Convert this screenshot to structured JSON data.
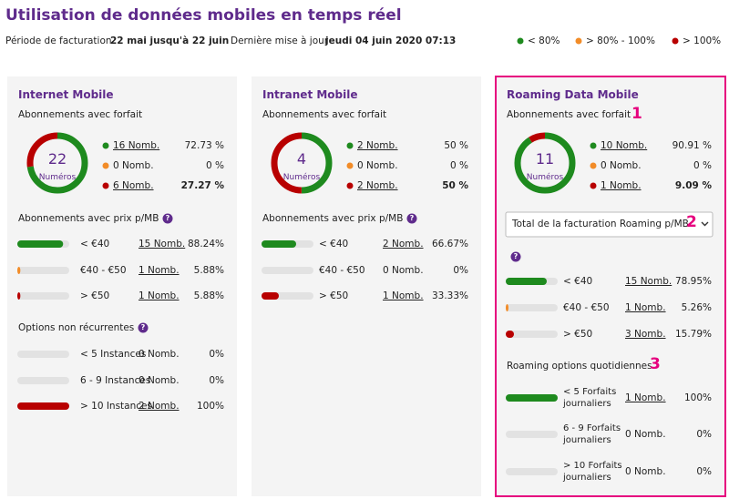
{
  "header": {
    "title": "Utilisation de données mobiles en temps réel",
    "period_label": "Période de facturation",
    "period": "22 mai jusqu'à 22 juin",
    "update_label": "Dernière mise à jour",
    "update": "jeudi 04 juin 2020 07:13"
  },
  "legend": [
    {
      "label": "< 80%",
      "color": "#1e8a1e"
    },
    {
      "label": "> 80% - 100%",
      "color": "#f28c28"
    },
    {
      "label": "> 100%",
      "color": "#b80000"
    }
  ],
  "panels": [
    {
      "title": "Internet Mobile",
      "subscriptions": {
        "label": "Abonnements avec forfait",
        "total": 22,
        "total_label": "Numéros",
        "rows": [
          {
            "count": "16 Nomb.",
            "pct": {
              "value": 72.73,
              "label": "72.73 %"
            },
            "color": "#1e8a1e",
            "link": true
          },
          {
            "count": "0 Nomb.",
            "pct": {
              "value": 0,
              "label": "0 %"
            },
            "color": "#f28c28",
            "link": false
          },
          {
            "count": "6 Nomb.",
            "pct": {
              "value": 27.27,
              "label": "27.27 %"
            },
            "color": "#b80000",
            "link": true,
            "emphasis": true
          }
        ]
      },
      "price": {
        "label": "Abonnements avec prix p/MB",
        "help": "?",
        "rows": [
          {
            "range": "< €40",
            "count": "15 Nomb.",
            "pct": {
              "value": 88.24,
              "label": "88.24%"
            },
            "color": "#1e8a1e",
            "link": true
          },
          {
            "range": "€40 - €50",
            "count": "1 Nomb.",
            "pct": {
              "value": 5.88,
              "label": "5.88%"
            },
            "color": "#f28c28",
            "link": true
          },
          {
            "range": "> €50",
            "count": "1 Nomb.",
            "pct": {
              "value": 5.88,
              "label": "5.88%"
            },
            "color": "#b80000",
            "link": true
          }
        ]
      },
      "options": {
        "label": "Options non récurrentes",
        "help": "?",
        "rows": [
          {
            "range": "< 5 Instances",
            "count": "0 Nomb.",
            "pct": {
              "value": 0,
              "label": "0%"
            },
            "color": "#1e8a1e",
            "link": false
          },
          {
            "range": "6 - 9 Instances",
            "count": "0 Nomb.",
            "pct": {
              "value": 0,
              "label": "0%"
            },
            "color": "#1e8a1e",
            "link": false
          },
          {
            "range": "> 10 Instances",
            "count": "2 Nomb.",
            "pct": {
              "value": 100,
              "label": "100%"
            },
            "color": "#b80000",
            "link": true
          }
        ]
      }
    },
    {
      "title": "Intranet Mobile",
      "subscriptions": {
        "label": "Abonnements avec forfait",
        "total": 4,
        "total_label": "Numéros",
        "rows": [
          {
            "count": "2 Nomb.",
            "pct": {
              "value": 50,
              "label": "50 %"
            },
            "color": "#1e8a1e",
            "link": true
          },
          {
            "count": "0 Nomb.",
            "pct": {
              "value": 0,
              "label": "0 %"
            },
            "color": "#f28c28",
            "link": false
          },
          {
            "count": "2 Nomb.",
            "pct": {
              "value": 50,
              "label": "50 %"
            },
            "color": "#b80000",
            "link": true,
            "emphasis": true
          }
        ]
      },
      "price": {
        "label": "Abonnements avec prix p/MB",
        "help": "?",
        "rows": [
          {
            "range": "< €40",
            "count": "2 Nomb.",
            "pct": {
              "value": 66.67,
              "label": "66.67%"
            },
            "color": "#1e8a1e",
            "link": true
          },
          {
            "range": "€40 - €50",
            "count": "0 Nomb.",
            "pct": {
              "value": 0,
              "label": "0%"
            },
            "color": "#f28c28",
            "link": false
          },
          {
            "range": "> €50",
            "count": "1 Nomb.",
            "pct": {
              "value": 33.33,
              "label": "33.33%"
            },
            "color": "#b80000",
            "link": true
          }
        ]
      }
    },
    {
      "title": "Roaming Data Mobile",
      "subscriptions": {
        "label": "Abonnements avec forfait",
        "total": 11,
        "total_label": "Numéros",
        "rows": [
          {
            "count": "10 Nomb.",
            "pct": {
              "value": 90.91,
              "label": "90.91 %"
            },
            "color": "#1e8a1e",
            "link": true
          },
          {
            "count": "0 Nomb.",
            "pct": {
              "value": 0,
              "label": "0 %"
            },
            "color": "#f28c28",
            "link": false
          },
          {
            "count": "1 Nomb.",
            "pct": {
              "value": 9.09,
              "label": "9.09 %"
            },
            "color": "#b80000",
            "link": true,
            "emphasis": true
          }
        ]
      },
      "dropdown": "Total de la facturation Roaming p/MB",
      "price": {
        "help": "?",
        "rows": [
          {
            "range": "< €40",
            "count": "15 Nomb.",
            "pct": {
              "value": 78.95,
              "label": "78.95%"
            },
            "color": "#1e8a1e",
            "link": true
          },
          {
            "range": "€40 - €50",
            "count": "1 Nomb.",
            "pct": {
              "value": 5.26,
              "label": "5.26%"
            },
            "color": "#f28c28",
            "link": true
          },
          {
            "range": "> €50",
            "count": "3 Nomb.",
            "pct": {
              "value": 15.79,
              "label": "15.79%"
            },
            "color": "#b80000",
            "link": true
          }
        ]
      },
      "options": {
        "label": "Roaming options quotidiennes",
        "rows": [
          {
            "range": "< 5 Forfaits journaliers",
            "count": "1 Nomb.",
            "pct": {
              "value": 100,
              "label": "100%"
            },
            "color": "#1e8a1e",
            "link": true
          },
          {
            "range": "6 - 9 Forfaits journaliers",
            "count": "0 Nomb.",
            "pct": {
              "value": 0,
              "label": "0%"
            },
            "color": "#1e8a1e",
            "link": false
          },
          {
            "range": "> 10 Forfaits journaliers",
            "count": "0 Nomb.",
            "pct": {
              "value": 0,
              "label": "0%"
            },
            "color": "#1e8a1e",
            "link": false
          }
        ]
      },
      "annotations": [
        "1",
        "2",
        "3"
      ]
    }
  ]
}
